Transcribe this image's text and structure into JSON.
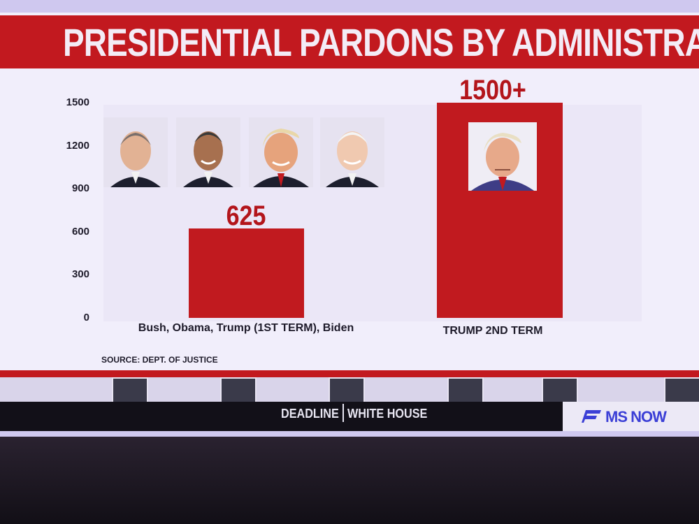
{
  "title": "PRESIDENTIAL PARDONS BY ADMINISTRATION",
  "source": "SOURCE: DEPT. OF JUSTICE",
  "ticker": {
    "show_left": "DEADLINE",
    "show_right": "WHITE HOUSE",
    "network": "MS NOW"
  },
  "colors": {
    "title_bar": "#c2191f",
    "bar": "#c11a1f",
    "label": "#b3151b",
    "network": "#3b3fd6"
  },
  "portraits": [
    {
      "name": "bush-portrait"
    },
    {
      "name": "obama-portrait"
    },
    {
      "name": "trump-first-term-portrait"
    },
    {
      "name": "biden-portrait"
    },
    {
      "name": "trump-mugshot-portrait"
    }
  ],
  "chart_data": {
    "type": "bar",
    "title": "PRESIDENTIAL PARDONS BY ADMINISTRATION",
    "categories": [
      "Bush, Obama, Trump (1ST TERM), Biden",
      "TRUMP 2ND TERM"
    ],
    "values": [
      625,
      1500
    ],
    "data_labels": [
      "625",
      "1500+"
    ],
    "yticks": [
      "0",
      "300",
      "600",
      "900",
      "1200",
      "1500"
    ],
    "ylim": [
      0,
      1500
    ],
    "xlabel": "",
    "ylabel": "",
    "grid": false,
    "legend": "none"
  }
}
